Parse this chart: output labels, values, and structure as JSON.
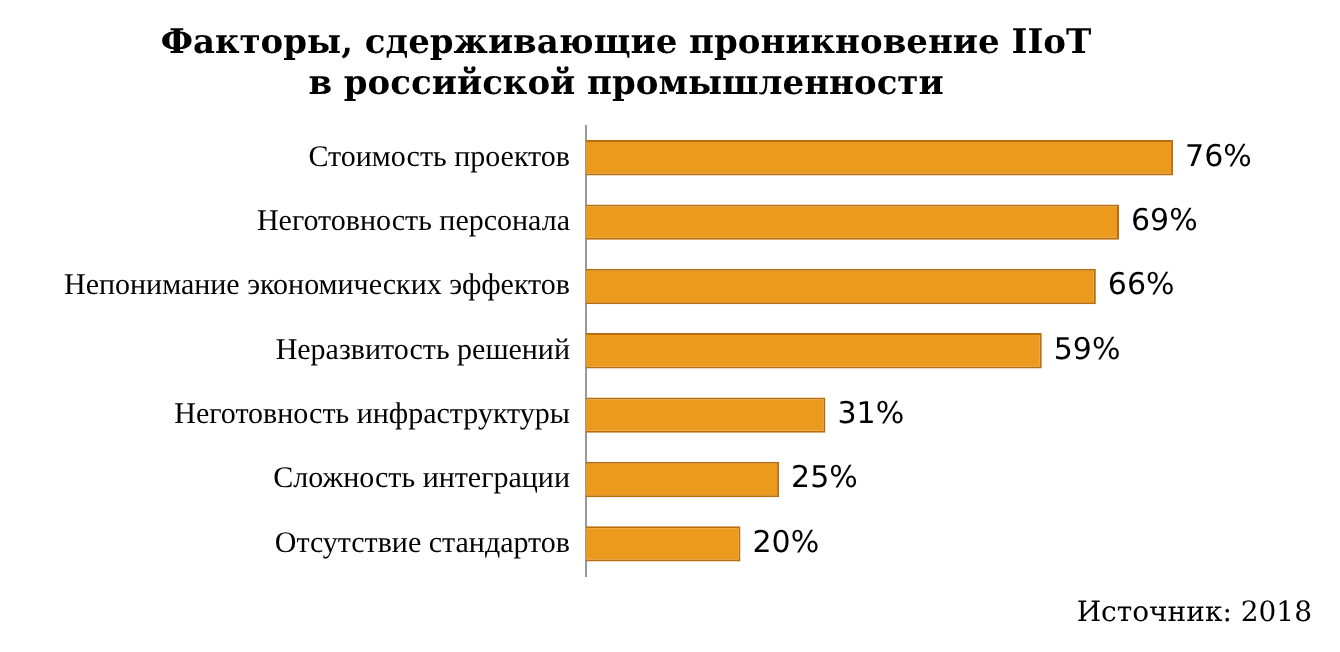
{
  "chart_data": {
    "type": "bar",
    "orientation": "horizontal",
    "title": "Факторы, сдерживающие проникновение IIoT\nв российской промышленности",
    "categories": [
      "Стоимость проектов",
      "Неготовность персонала",
      "Непонимание экономических эффектов",
      "Неразвитость решений",
      "Неготовность инфраструктуры",
      "Сложность интеграции",
      "Отсутствие стандартов"
    ],
    "values": [
      76,
      69,
      66,
      59,
      31,
      25,
      20
    ],
    "value_labels": [
      "76%",
      "69%",
      "66%",
      "59%",
      "31%",
      "25%",
      "20%"
    ],
    "color": "#ec9a1e",
    "grid": false,
    "legend": false,
    "tick_labels": "y",
    "annotations": [
      "Источник: 2018"
    ]
  }
}
